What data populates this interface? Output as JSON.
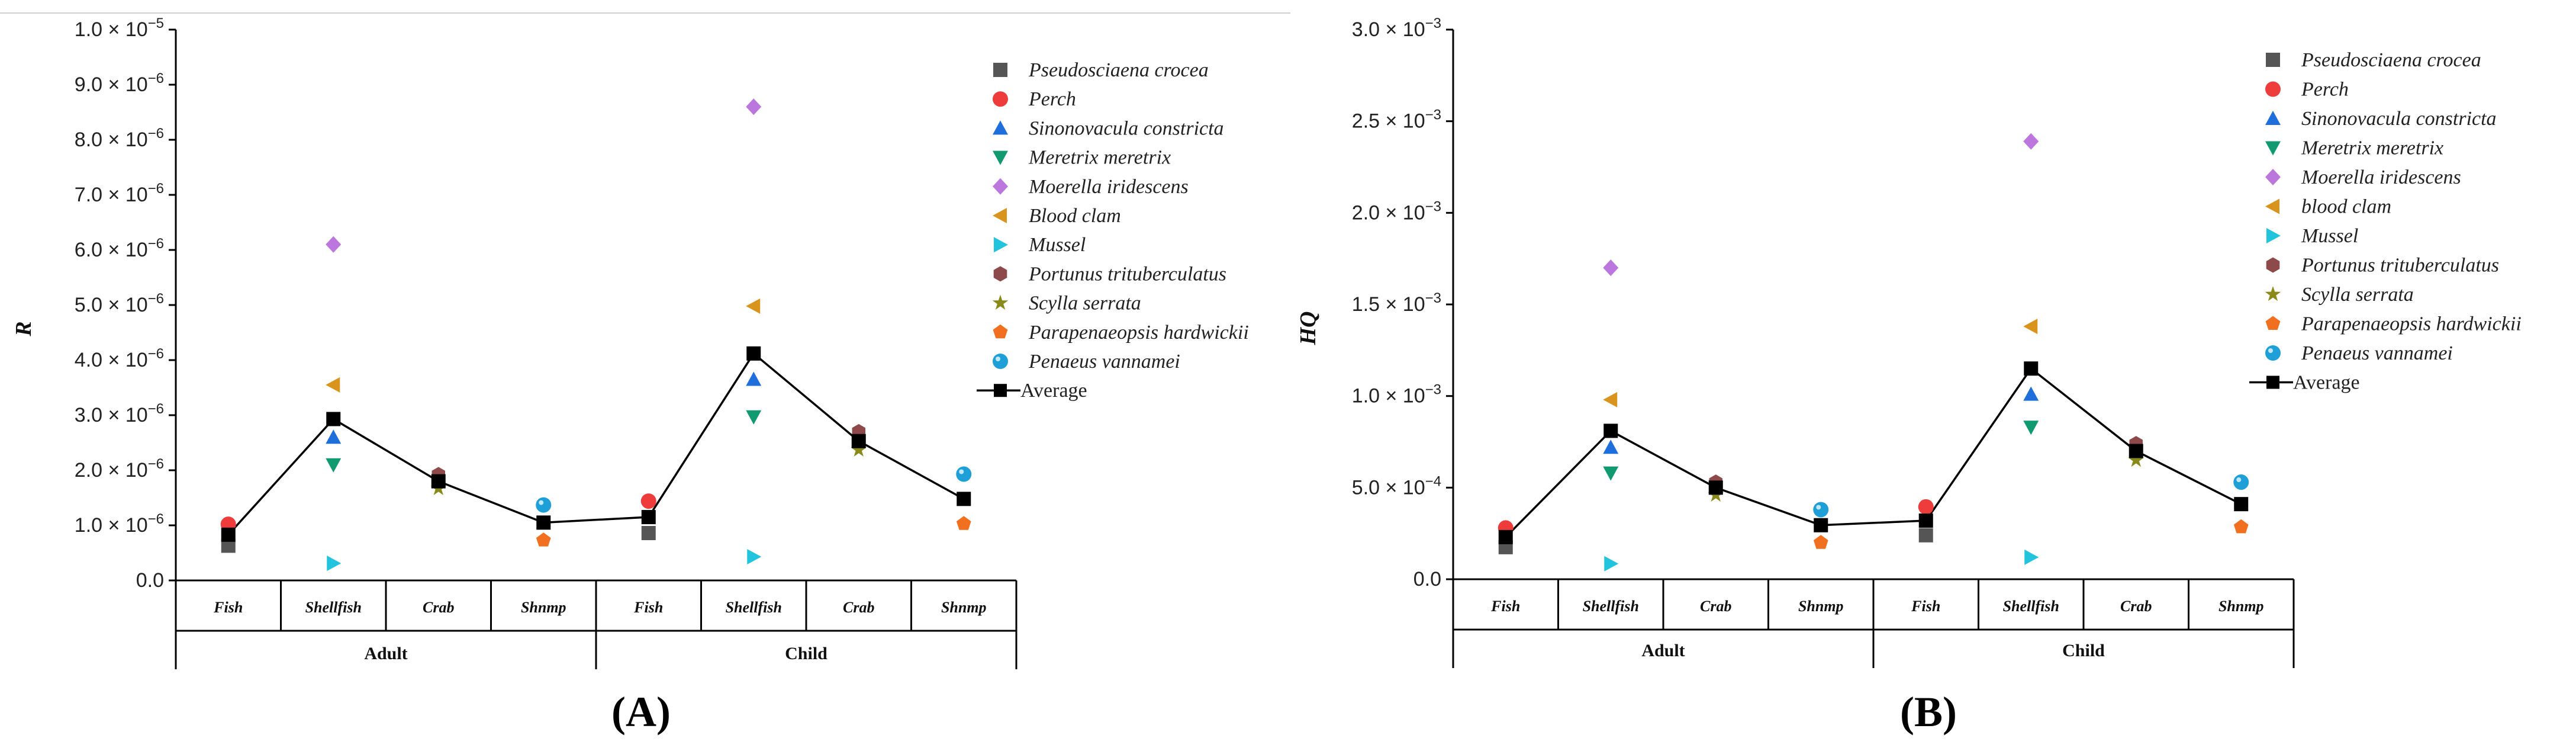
{
  "chart_data": [
    {
      "type": "scatter",
      "panel_label": "(A)",
      "ylabel": "R",
      "ylim": [
        0,
        1e-05
      ],
      "yticks": [
        0,
        1e-06,
        2e-06,
        3e-06,
        4e-06,
        5e-06,
        6e-06,
        7e-06,
        8e-06,
        9e-06,
        1e-05
      ],
      "ytick_labels": [
        {
          "mant": "0.0",
          "exp": ""
        },
        {
          "mant": "1.0 × 10",
          "exp": "−6"
        },
        {
          "mant": "2.0 × 10",
          "exp": "−6"
        },
        {
          "mant": "3.0 × 10",
          "exp": "−6"
        },
        {
          "mant": "4.0 × 10",
          "exp": "−6"
        },
        {
          "mant": "5.0 × 10",
          "exp": "−6"
        },
        {
          "mant": "6.0 × 10",
          "exp": "−6"
        },
        {
          "mant": "7.0 × 10",
          "exp": "−6"
        },
        {
          "mant": "8.0 × 10",
          "exp": "−6"
        },
        {
          "mant": "9.0 × 10",
          "exp": "−6"
        },
        {
          "mant": "1.0 × 10",
          "exp": "−5"
        }
      ],
      "categories": [
        "Fish",
        "Shellfish",
        "Crab",
        "Shnmp",
        "Fish",
        "Shellfish",
        "Crab",
        "Shnmp"
      ],
      "groups": [
        {
          "label": "Adult",
          "span": [
            0,
            3
          ]
        },
        {
          "label": "Child",
          "span": [
            4,
            7
          ]
        }
      ],
      "series": [
        {
          "name": "Pseudosciaena crocea",
          "marker": "square",
          "color": "#555555",
          "values": [
            6.3e-07,
            null,
            null,
            null,
            8.6e-07,
            null,
            null,
            null
          ]
        },
        {
          "name": "Perch",
          "marker": "circle",
          "color": "#ee3b3b",
          "values": [
            1.02e-06,
            null,
            null,
            null,
            1.44e-06,
            null,
            null,
            null
          ]
        },
        {
          "name": "Sinonovacula constricta",
          "marker": "triangle-up",
          "color": "#1e6fdc",
          "values": [
            null,
            2.6e-06,
            null,
            null,
            null,
            3.65e-06,
            null,
            null
          ]
        },
        {
          "name": "Meretrix meretrix",
          "marker": "triangle-down",
          "color": "#119a6f",
          "values": [
            null,
            2.1e-06,
            null,
            null,
            null,
            2.97e-06,
            null,
            null
          ]
        },
        {
          "name": "Moerella iridescens",
          "marker": "diamond",
          "color": "#bb77dd",
          "values": [
            null,
            6.1e-06,
            null,
            null,
            null,
            8.6e-06,
            null,
            null
          ]
        },
        {
          "name": "Blood clam",
          "marker": "triangle-left",
          "color": "#d8941c",
          "values": [
            null,
            3.55e-06,
            null,
            null,
            null,
            4.98e-06,
            null,
            null
          ]
        },
        {
          "name": "Mussel",
          "marker": "triangle-right",
          "color": "#22c4dd",
          "values": [
            null,
            3.1e-07,
            null,
            null,
            null,
            4.3e-07,
            null,
            null
          ]
        },
        {
          "name": "Portunus trituberculatus",
          "marker": "hexagon",
          "color": "#8e4a4a",
          "values": [
            null,
            null,
            1.92e-06,
            null,
            null,
            null,
            2.7e-06,
            null
          ]
        },
        {
          "name": "Scylla serrata",
          "marker": "star",
          "color": "#8a8a1a",
          "values": [
            null,
            null,
            1.67e-06,
            null,
            null,
            null,
            2.37e-06,
            null
          ]
        },
        {
          "name": "Parapenaeopsis hardwickii",
          "marker": "pentagon",
          "color": "#f07020",
          "values": [
            null,
            null,
            null,
            7.3e-07,
            null,
            null,
            null,
            1.03e-06
          ]
        },
        {
          "name": "Penaeus vannamei",
          "marker": "ball",
          "color": "#1f9fd8",
          "values": [
            null,
            null,
            null,
            1.37e-06,
            null,
            null,
            null,
            1.93e-06
          ]
        }
      ],
      "average": {
        "name": "Average",
        "values": [
          8.3e-07,
          2.93e-06,
          1.8e-06,
          1.05e-06,
          1.15e-06,
          4.12e-06,
          2.53e-06,
          1.48e-06
        ]
      }
    },
    {
      "type": "scatter",
      "panel_label": "(B)",
      "ylabel": "HQ",
      "ylim": [
        0,
        0.003
      ],
      "yticks": [
        0,
        0.0005,
        0.001,
        0.0015,
        0.002,
        0.0025,
        0.003
      ],
      "ytick_labels": [
        {
          "mant": "0.0",
          "exp": ""
        },
        {
          "mant": "5.0 × 10",
          "exp": "−4"
        },
        {
          "mant": "1.0 × 10",
          "exp": "−3"
        },
        {
          "mant": "1.5 × 10",
          "exp": "−3"
        },
        {
          "mant": "2.0 × 10",
          "exp": "−3"
        },
        {
          "mant": "2.5 × 10",
          "exp": "−3"
        },
        {
          "mant": "3.0 × 10",
          "exp": "−3"
        }
      ],
      "categories": [
        "Fish",
        "Shellfish",
        "Crab",
        "Shnmp",
        "Fish",
        "Shellfish",
        "Crab",
        "Shnmp"
      ],
      "groups": [
        {
          "label": "Adult",
          "span": [
            0,
            3
          ]
        },
        {
          "label": "Child",
          "span": [
            4,
            7
          ]
        }
      ],
      "series": [
        {
          "name": "Pseudosciaena crocea",
          "marker": "square",
          "color": "#555555",
          "values": [
            0.000175,
            null,
            null,
            null,
            0.00024,
            null,
            null,
            null
          ]
        },
        {
          "name": "Perch",
          "marker": "circle",
          "color": "#ee3b3b",
          "values": [
            0.00028,
            null,
            null,
            null,
            0.000395,
            null,
            null,
            null
          ]
        },
        {
          "name": "Sinonovacula constricta",
          "marker": "triangle-up",
          "color": "#1e6fdc",
          "values": [
            null,
            0.00072,
            null,
            null,
            null,
            0.00101,
            null,
            null
          ]
        },
        {
          "name": "Meretrix meretrix",
          "marker": "triangle-down",
          "color": "#119a6f",
          "values": [
            null,
            0.00058,
            null,
            null,
            null,
            0.00083,
            null,
            null
          ]
        },
        {
          "name": "Moerella iridescens",
          "marker": "diamond",
          "color": "#bb77dd",
          "values": [
            null,
            0.0017,
            null,
            null,
            null,
            0.00239,
            null,
            null
          ]
        },
        {
          "name": "blood clam",
          "marker": "triangle-left",
          "color": "#d8941c",
          "values": [
            null,
            0.00098,
            null,
            null,
            null,
            0.00138,
            null,
            null
          ]
        },
        {
          "name": "Mussel",
          "marker": "triangle-right",
          "color": "#22c4dd",
          "values": [
            null,
            8.5e-05,
            null,
            null,
            null,
            0.00012,
            null,
            null
          ]
        },
        {
          "name": "Portunus trituberculatus",
          "marker": "hexagon",
          "color": "#8e4a4a",
          "values": [
            null,
            null,
            0.00053,
            null,
            null,
            null,
            0.00074,
            null
          ]
        },
        {
          "name": "Scylla serrata",
          "marker": "star",
          "color": "#8a8a1a",
          "values": [
            null,
            null,
            0.00046,
            null,
            null,
            null,
            0.00065,
            null
          ]
        },
        {
          "name": "Parapenaeopsis hardwickii",
          "marker": "pentagon",
          "color": "#f07020",
          "values": [
            null,
            null,
            null,
            0.0002,
            null,
            null,
            null,
            0.000285
          ]
        },
        {
          "name": "Penaeus vannamei",
          "marker": "ball",
          "color": "#1f9fd8",
          "values": [
            null,
            null,
            null,
            0.00038,
            null,
            null,
            null,
            0.00053
          ]
        }
      ],
      "average": {
        "name": "Average",
        "values": [
          0.00023,
          0.00081,
          0.0005,
          0.000295,
          0.00032,
          0.00115,
          0.0007,
          0.00041
        ]
      }
    }
  ]
}
